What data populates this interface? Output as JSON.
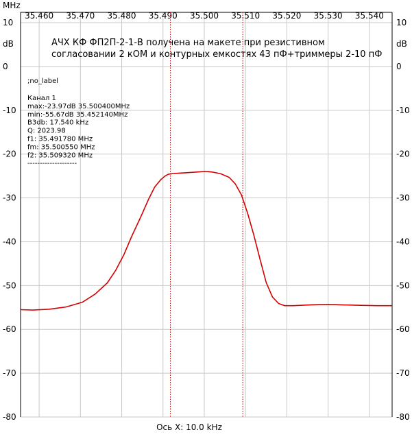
{
  "chart_data": {
    "type": "line",
    "title_line1": "АЧХ  КФ ФП2П-2-1-В получена на макете при резистивном",
    "title_line2": "согласовании 2 кОМ и контурных емкостях 43 пФ+триммеры 2-10 пФ",
    "x_unit": "MHz",
    "y_unit_left": "dB",
    "y_unit_right": "dB",
    "xlabel": "Ось X: 10.0 kHz",
    "xlim": [
      35.4555,
      35.5455
    ],
    "ylim": [
      -80,
      10
    ],
    "x_ticks": [
      35.46,
      35.47,
      35.48,
      35.49,
      35.5,
      35.51,
      35.52,
      35.53,
      35.54
    ],
    "x_tick_labels": [
      "35.460",
      "35.470",
      "35.480",
      "35.490",
      "35.500",
      "35.510",
      "35.520",
      "35.530",
      "35.540"
    ],
    "y_ticks": [
      10,
      0,
      -10,
      -20,
      -30,
      -40,
      -50,
      -60,
      -70,
      -80
    ],
    "y_tick_labels": [
      "10",
      "0",
      "-10",
      "-20",
      "-30",
      "-40",
      "-50",
      "-60",
      "-70",
      "-80"
    ],
    "markers_x": [
      35.49178,
      35.50932
    ],
    "series": [
      {
        "color": "#d40000",
        "x": [
          35.4555,
          35.4585,
          35.4625,
          35.4665,
          35.4705,
          35.4735,
          35.4765,
          35.4785,
          35.4805,
          35.4825,
          35.4845,
          35.4865,
          35.488,
          35.4895,
          35.4905,
          35.4913,
          35.492,
          35.493,
          35.495,
          35.498,
          35.5,
          35.501,
          35.502,
          35.504,
          35.506,
          35.5075,
          35.509,
          35.5105,
          35.512,
          35.5135,
          35.515,
          35.5165,
          35.518,
          35.5195,
          35.5215,
          35.526,
          35.53,
          35.533,
          35.537,
          35.542,
          35.5455
        ],
        "y": [
          -55.5,
          -55.6,
          -55.4,
          -54.9,
          -53.8,
          -52.0,
          -49.4,
          -46.6,
          -43.0,
          -38.6,
          -34.6,
          -30.3,
          -27.5,
          -25.8,
          -25.0,
          -24.6,
          -24.5,
          -24.4,
          -24.3,
          -24.1,
          -23.97,
          -24.0,
          -24.1,
          -24.5,
          -25.3,
          -26.8,
          -29.3,
          -33.5,
          -38.5,
          -44.0,
          -49.3,
          -52.6,
          -54.1,
          -54.6,
          -54.6,
          -54.4,
          -54.3,
          -54.4,
          -54.5,
          -54.6,
          -54.6
        ]
      }
    ]
  },
  "info": {
    "label": ";no_label",
    "lines": [
      "Канал 1",
      "max:-23.97dB 35.500400MHz",
      "min:-55.67dB 35.452140MHz",
      "B3db: 17.540 kHz",
      "Q: 2023.98",
      "f1: 35.491780 MHz",
      "fm: 35.500550 MHz",
      "f2: 35.509320 MHz",
      "--------------------"
    ]
  },
  "colors": {
    "curve": "#d40000",
    "marker": "#c00000",
    "grid": "#c8c8c8",
    "frame": "#000000"
  }
}
